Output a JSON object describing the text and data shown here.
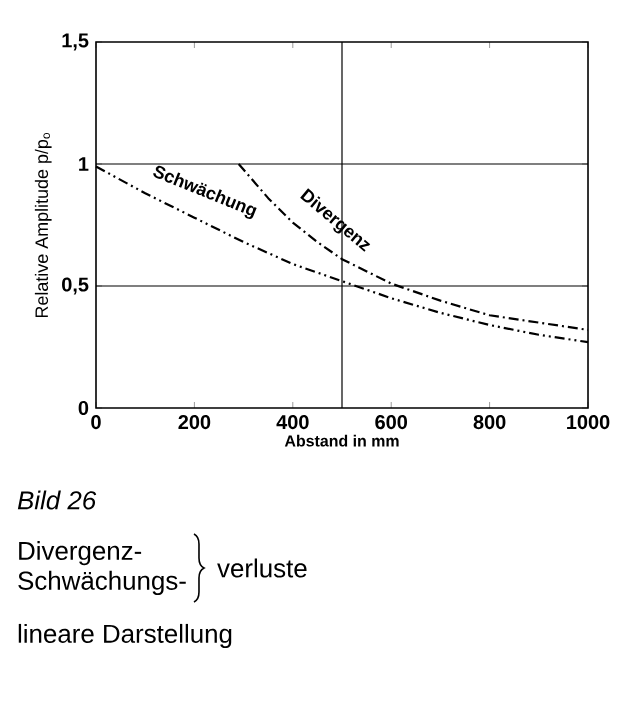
{
  "chart_data": {
    "type": "line",
    "xlabel": "Abstand in mm",
    "ylabel": "Relative Amplitude p/p$_{o}$",
    "xlim": [
      0,
      1000
    ],
    "xticks": [
      0,
      200,
      400,
      600,
      800,
      1000
    ],
    "ylim": [
      0,
      1.5
    ],
    "yticks": [
      0,
      {
        "value": 0.5,
        "label": "0,5"
      },
      1,
      {
        "value": 1.5,
        "label": "1,5"
      }
    ],
    "line_style": "dashed",
    "marker": "none",
    "grid": false,
    "series": [
      {
        "name": "Divergenz",
        "color": "#000000",
        "x": [
          290,
          350,
          400,
          450,
          500,
          600,
          700,
          800,
          900,
          1000
        ],
        "values": [
          1.0,
          0.86,
          0.76,
          0.68,
          0.61,
          0.51,
          0.44,
          0.38,
          0.35,
          0.32
        ]
      },
      {
        "name": "Schwächung",
        "color": "#000000",
        "x": [
          0,
          100,
          200,
          300,
          400,
          500,
          600,
          700,
          800,
          900,
          1000
        ],
        "values": [
          0.99,
          0.88,
          0.78,
          0.68,
          0.59,
          0.52,
          0.45,
          0.39,
          0.34,
          0.3,
          0.27
        ]
      }
    ],
    "ref_lines": [
      {
        "axis": "x",
        "value": 500
      },
      {
        "axis": "y",
        "value": 0.5
      },
      {
        "axis": "y",
        "value": 1
      }
    ],
    "annotations": [
      "Bild 26",
      "Divergenz-",
      "Schwächungs-",
      "verluste",
      "lineare Darstellung"
    ]
  }
}
